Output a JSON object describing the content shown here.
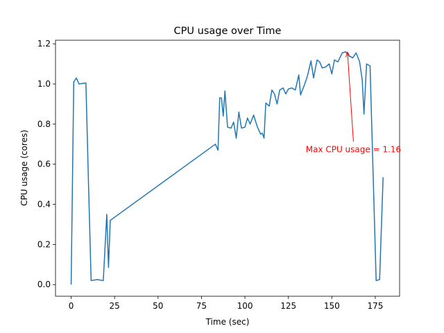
{
  "chart_data": {
    "type": "line",
    "title": "CPU usage over Time",
    "xlabel": "Time (sec)",
    "ylabel": "CPU usage (cores)",
    "x": [
      0,
      1.5,
      3,
      4.5,
      8.5,
      10,
      11.5,
      15,
      18.5,
      20.5,
      21.5,
      22.5,
      83,
      84.5,
      85.5,
      86.5,
      87.5,
      88.5,
      90,
      92,
      93.5,
      95,
      96.5,
      98,
      100,
      101.5,
      103,
      105,
      107,
      109,
      110,
      111,
      112,
      114,
      115.5,
      117,
      118.5,
      120,
      122,
      123.5,
      125,
      127,
      129,
      131,
      132,
      134,
      136,
      138,
      139.5,
      141.5,
      143,
      144.5,
      146.5,
      148.5,
      150,
      151.5,
      153.5,
      156,
      158,
      160,
      162,
      164,
      166,
      167.5,
      168.5,
      170,
      172,
      175.5,
      177.5,
      179.5
    ],
    "values": [
      0,
      1.01,
      1.03,
      1.0,
      1.005,
      0.5,
      0.02,
      0.025,
      0.02,
      0.35,
      0.085,
      0.32,
      0.7,
      0.67,
      0.93,
      0.93,
      0.84,
      0.965,
      0.785,
      0.78,
      0.81,
      0.73,
      0.86,
      0.78,
      0.785,
      0.83,
      0.8,
      0.845,
      0.79,
      0.75,
      0.755,
      0.73,
      0.905,
      0.89,
      0.97,
      0.95,
      0.9,
      0.97,
      0.98,
      0.95,
      0.975,
      0.98,
      0.97,
      1.045,
      0.945,
      0.99,
      1.04,
      1.115,
      1.03,
      1.12,
      1.11,
      1.08,
      1.085,
      1.1,
      1.05,
      1.12,
      1.11,
      1.155,
      1.16,
      1.14,
      1.13,
      1.155,
      1.11,
      1.02,
      0.85,
      1.1,
      1.09,
      0.02,
      0.025,
      0.535
    ],
    "color": "#1f77b4",
    "xlim": [
      -9,
      189
    ],
    "xticks": [
      0,
      25,
      50,
      75,
      100,
      125,
      150,
      175
    ],
    "ylim": [
      -0.058,
      1.218
    ],
    "yticks": [
      {
        "value": 0,
        "label": "0.0"
      },
      0.2,
      0.4,
      0.6,
      0.8,
      {
        "value": 1,
        "label": "1.0"
      },
      1.2
    ],
    "annotation": {
      "text": "Max CPU usage = 1.16",
      "xy": [
        159,
        1.16
      ],
      "xytext": [
        135,
        0.66
      ],
      "color": "#ff0000"
    }
  }
}
